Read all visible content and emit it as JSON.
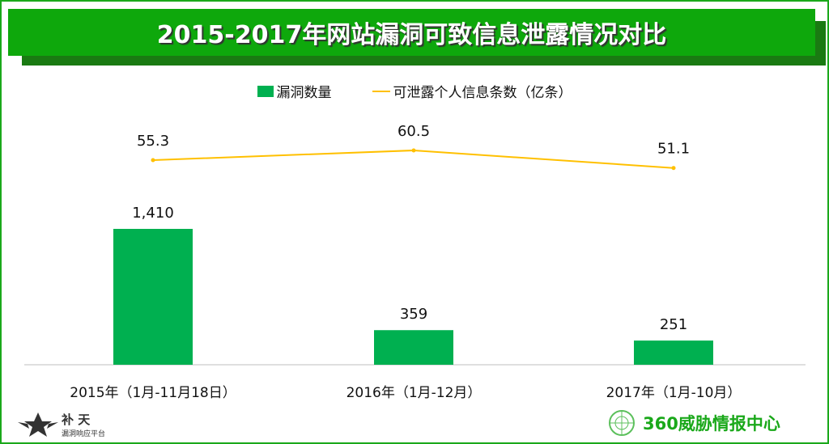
{
  "chart_data": {
    "type": "bar",
    "title": "2015-2017年网站漏洞可致信息泄露情况对比",
    "categories": [
      "2015年（1月-11月18日）",
      "2016年（1月-12月）",
      "2017年（1月-10月）"
    ],
    "series": [
      {
        "name": "漏洞数量",
        "type": "bar",
        "values": [
          1410,
          359,
          251
        ],
        "labels": [
          "1,410",
          "359",
          "251"
        ],
        "color": "#00b050"
      },
      {
        "name": "可泄露个人信息条数（亿条）",
        "type": "line",
        "values": [
          55.3,
          60.5,
          51.1
        ],
        "labels": [
          "55.3",
          "60.5",
          "51.1"
        ],
        "color": "#ffc000"
      }
    ],
    "legend": "top-center",
    "grid": false
  },
  "logos": {
    "left_name": "补 天",
    "left_sub": "漏洞响应平台",
    "right": "360威胁情报中心"
  }
}
